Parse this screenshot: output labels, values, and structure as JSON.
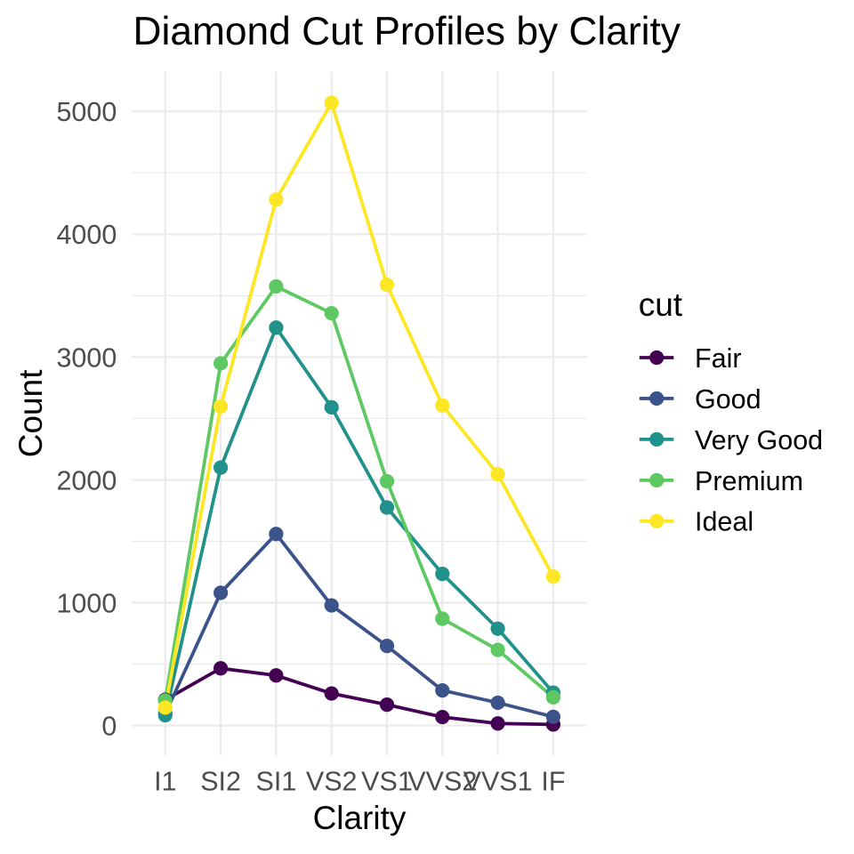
{
  "chart_data": {
    "type": "line",
    "title": "Diamond Cut Profiles by Clarity",
    "xlabel": "Clarity",
    "ylabel": "Count",
    "legend_title": "cut",
    "legend_position": "right",
    "grid": true,
    "categories": [
      "I1",
      "SI2",
      "SI1",
      "VS2",
      "VS1",
      "VVS2",
      "VVS1",
      "IF"
    ],
    "series": [
      {
        "name": "Fair",
        "color": "#440154",
        "values": [
          210,
          466,
          408,
          261,
          170,
          69,
          17,
          9
        ]
      },
      {
        "name": "Good",
        "color": "#3B528B",
        "values": [
          96,
          1081,
          1560,
          978,
          648,
          286,
          186,
          71
        ]
      },
      {
        "name": "Very Good",
        "color": "#21918C",
        "values": [
          84,
          2100,
          3240,
          2591,
          1775,
          1235,
          789,
          268
        ]
      },
      {
        "name": "Premium",
        "color": "#5EC962",
        "values": [
          205,
          2949,
          3575,
          3357,
          1989,
          870,
          616,
          230
        ]
      },
      {
        "name": "Ideal",
        "color": "#FDE725",
        "values": [
          146,
          2598,
          4282,
          5071,
          3589,
          2606,
          2047,
          1212
        ]
      }
    ],
    "y_ticks": [
      0,
      1000,
      2000,
      3000,
      4000,
      5000
    ],
    "y_minor_ticks": [
      500,
      1500,
      2500,
      3500,
      4500
    ],
    "ylim": [
      -244,
      5324
    ],
    "colors": {
      "background": "#FFFFFF",
      "grid": "#EBEBEB",
      "tick_label": "#4D4D4D",
      "title": "#000000"
    }
  }
}
